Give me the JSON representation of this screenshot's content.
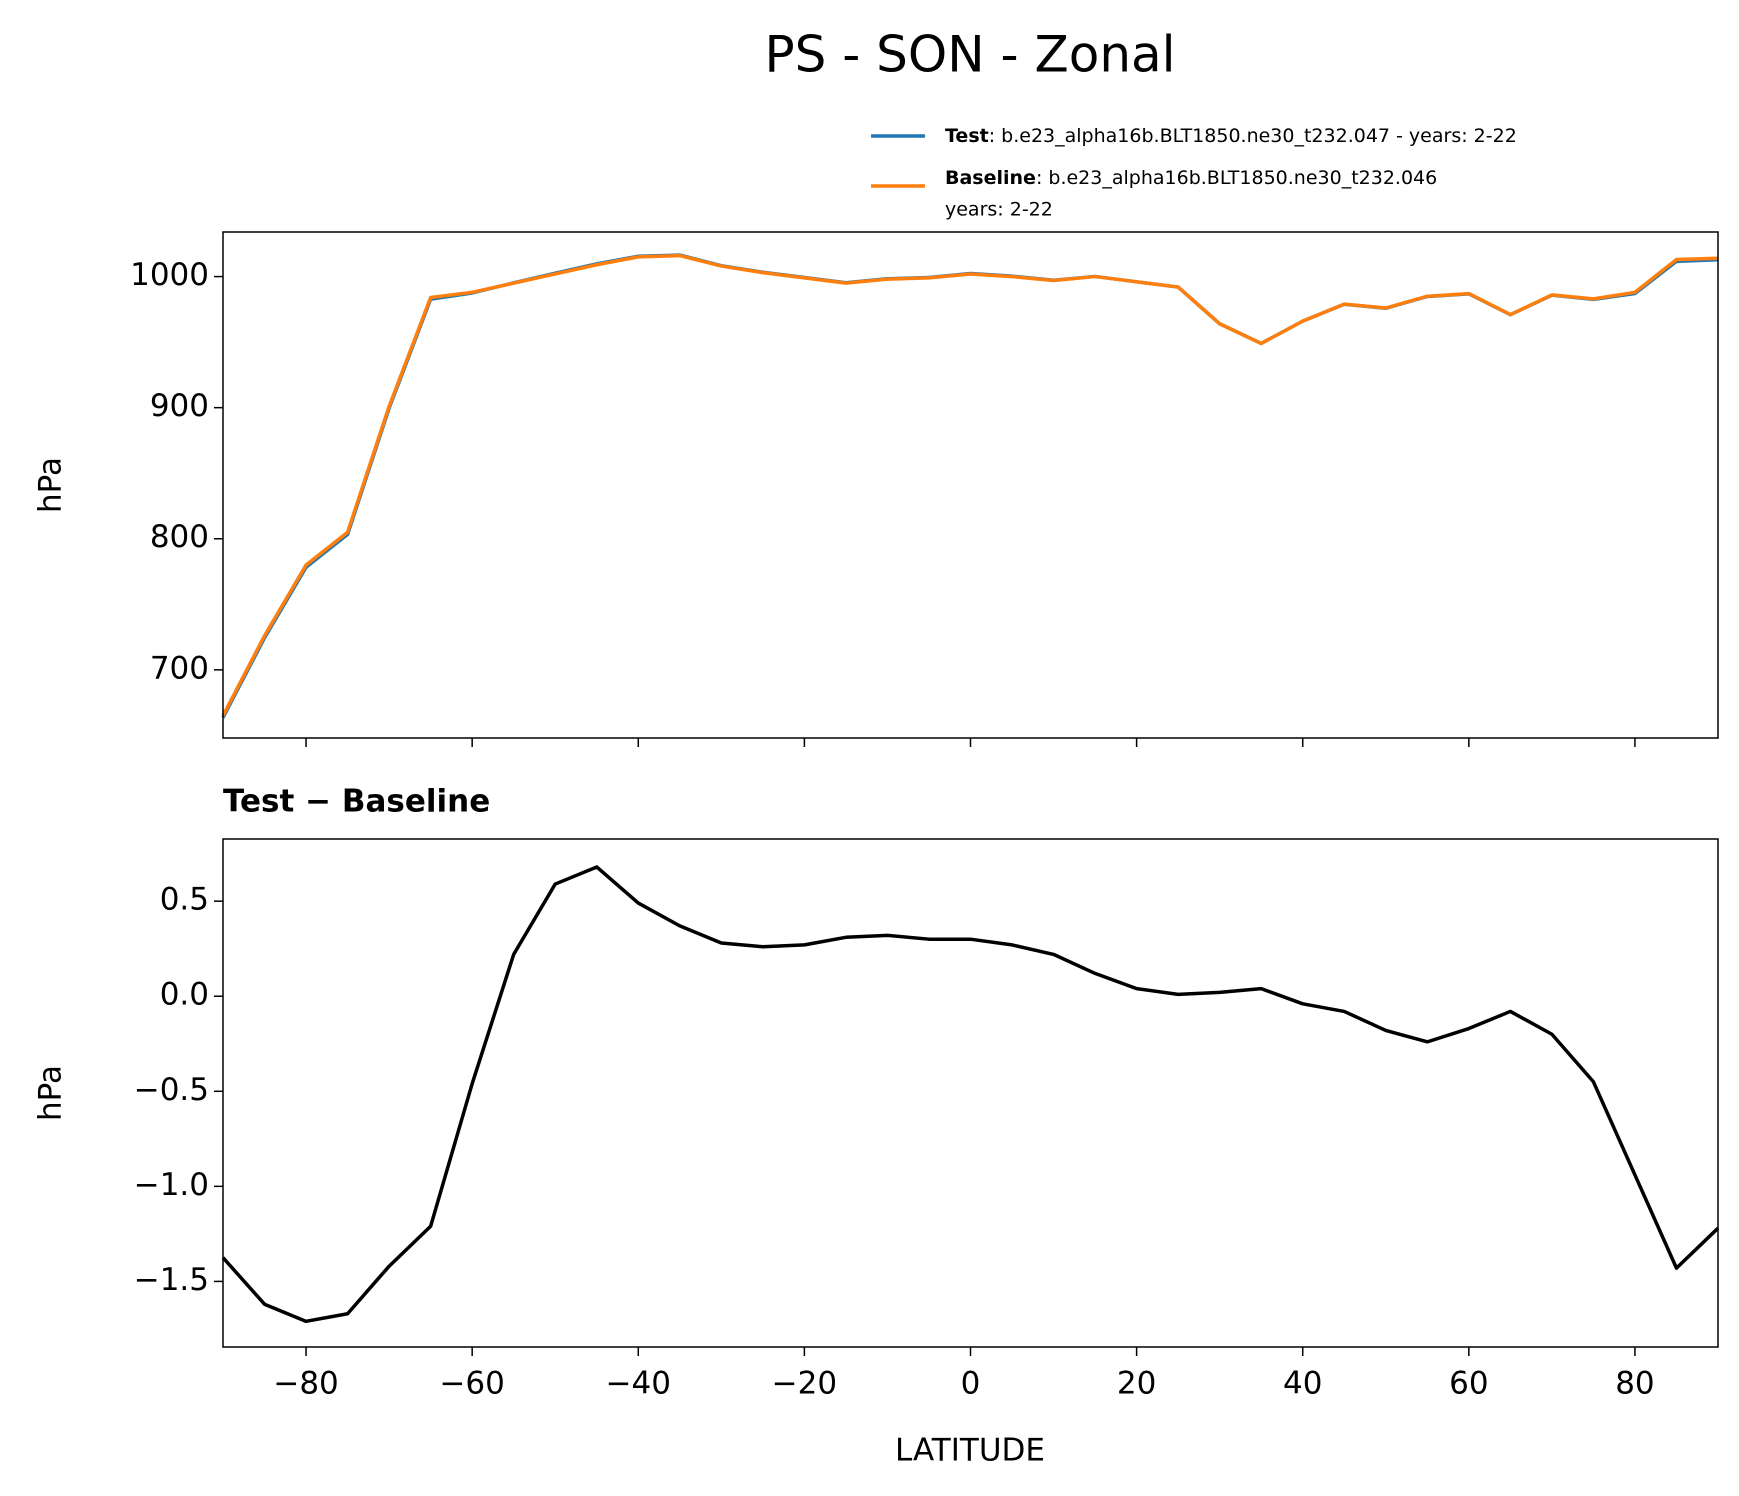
{
  "chart_data": [
    {
      "type": "line",
      "title": "PS - SON - Zonal",
      "ylabel": "hPa",
      "x": [
        -90,
        -85,
        -80,
        -75,
        -70,
        -65,
        -60,
        -55,
        -50,
        -45,
        -40,
        -35,
        -30,
        -25,
        -20,
        -15,
        -10,
        -5,
        0,
        5,
        10,
        15,
        20,
        25,
        30,
        35,
        40,
        45,
        50,
        55,
        60,
        65,
        70,
        75,
        80,
        85,
        90
      ],
      "series": [
        {
          "name": "Test",
          "description": [
            ": b.e23_alpha16b.BLT1850.ne30_t232.047 - years: 2-22"
          ],
          "color": "#1f77b4",
          "values": [
            663.6,
            724.4,
            778.3,
            803.3,
            899.6,
            982.8,
            987.5,
            995.2,
            1002.6,
            1009.7,
            1015.5,
            1016.4,
            1008.3,
            1003.3,
            999.3,
            995.3,
            998.3,
            999.3,
            1002.3,
            1000.3,
            997.2,
            1000.1,
            996.0,
            992.0,
            964.0,
            949.0,
            966.0,
            978.9,
            975.8,
            984.8,
            986.8,
            970.9,
            985.8,
            982.6,
            987.1,
            1011.6,
            1012.8
          ]
        },
        {
          "name": "Baseline",
          "description": [
            ": b.e23_alpha16b.BLT1850.ne30_t232.046",
            "years: 2-22"
          ],
          "color": "#ff7f0e",
          "values": [
            665,
            726,
            780,
            805,
            901,
            984,
            988,
            995,
            1002,
            1009,
            1015,
            1016,
            1008,
            1003,
            999,
            995,
            998,
            999,
            1002,
            1000,
            997,
            1000,
            996,
            992,
            964,
            949,
            966,
            979,
            976,
            985,
            987,
            971,
            986,
            983,
            988,
            1013,
            1014
          ]
        }
      ],
      "xlim": [
        -90,
        90
      ],
      "xticks": [
        -80,
        -60,
        -40,
        -20,
        0,
        20,
        40,
        60,
        80
      ],
      "ylim": [
        648,
        1034
      ],
      "yticks": [
        700,
        800,
        900,
        1000
      ],
      "legend": "upper right"
    },
    {
      "type": "line",
      "title": "Test − Baseline",
      "ylabel": "hPa",
      "xlabel": "LATITUDE",
      "x": [
        -90,
        -85,
        -80,
        -75,
        -70,
        -65,
        -60,
        -55,
        -50,
        -45,
        -40,
        -35,
        -30,
        -25,
        -20,
        -15,
        -10,
        -5,
        0,
        5,
        10,
        15,
        20,
        25,
        30,
        35,
        40,
        45,
        50,
        55,
        60,
        65,
        70,
        75,
        80,
        85,
        90
      ],
      "series": [
        {
          "color": "#000000",
          "values": [
            -1.375,
            -1.62,
            -1.71,
            -1.67,
            -1.42,
            -1.21,
            -0.46,
            0.22,
            0.59,
            0.68,
            0.49,
            0.37,
            0.28,
            0.26,
            0.27,
            0.31,
            0.32,
            0.3,
            0.3,
            0.27,
            0.22,
            0.12,
            0.04,
            0.01,
            0.02,
            0.04,
            -0.04,
            -0.08,
            -0.18,
            -0.24,
            -0.17,
            -0.08,
            -0.2,
            -0.45,
            -0.94,
            -1.43,
            -1.22
          ]
        }
      ],
      "xlim": [
        -90,
        90
      ],
      "xticks": [
        {
          "value": -80,
          "label": "−80"
        },
        {
          "value": -60,
          "label": "−60"
        },
        {
          "value": -40,
          "label": "−40"
        },
        {
          "value": -20,
          "label": "−20"
        },
        0,
        20,
        40,
        60,
        80
      ],
      "ylim": [
        -1.845,
        0.827
      ],
      "yticks": [
        0.5,
        {
          "value": 0,
          "label": "0.0"
        },
        {
          "value": -0.5,
          "label": "−0.5"
        },
        {
          "value": -1,
          "label": "−1.0"
        },
        {
          "value": -1.5,
          "label": "−1.5"
        }
      ]
    }
  ]
}
